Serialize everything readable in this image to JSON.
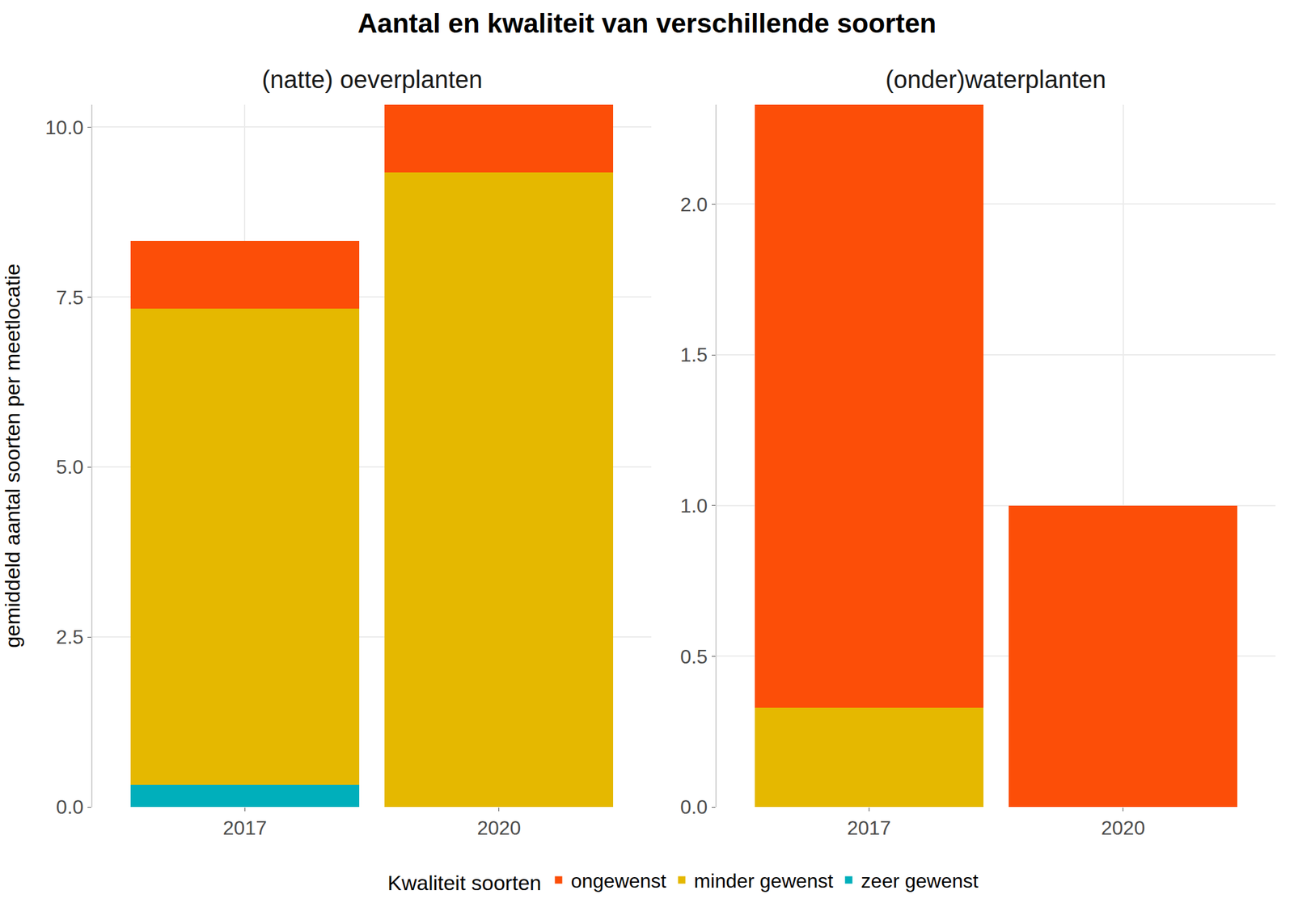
{
  "chart_data": {
    "type": "bar",
    "title": "Aantal en kwaliteit van verschillende soorten",
    "y_label": "gemiddeld aantal soorten per meetlocatie",
    "legend_title": "Kwaliteit soorten",
    "legend": "bottom",
    "stacked": true,
    "grid": true,
    "panels": [
      {
        "title": "(natte) oeverplanten",
        "categories": [
          "2017",
          "2020"
        ],
        "ylim": [
          0,
          10.33
        ],
        "yticks": [
          {
            "value": 0,
            "label": "0.0"
          },
          {
            "value": 2.5,
            "label": "2.5"
          },
          {
            "value": 5,
            "label": "5.0"
          },
          {
            "value": 7.5,
            "label": "7.5"
          },
          {
            "value": 10,
            "label": "10.0"
          }
        ],
        "series": [
          {
            "name": "zeer gewenst",
            "color": "#00AFBB",
            "values": [
              0.33,
              0
            ]
          },
          {
            "name": "minder gewenst",
            "color": "#E5B800",
            "values": [
              7.0,
              9.33
            ]
          },
          {
            "name": "ongewenst",
            "color": "#FC4E08",
            "values": [
              1.0,
              1.0
            ]
          }
        ]
      },
      {
        "title": "(onder)waterplanten",
        "categories": [
          "2017",
          "2020"
        ],
        "ylim": [
          0,
          2.33
        ],
        "yticks": [
          {
            "value": 0,
            "label": "0.0"
          },
          {
            "value": 0.5,
            "label": "0.5"
          },
          {
            "value": 1,
            "label": "1.0"
          },
          {
            "value": 1.5,
            "label": "1.5"
          },
          {
            "value": 2,
            "label": "2.0"
          }
        ],
        "series": [
          {
            "name": "minder gewenst",
            "color": "#E5B800",
            "values": [
              0.33,
              0
            ]
          },
          {
            "name": "ongewenst",
            "color": "#FC4E08",
            "values": [
              2.0,
              1.0
            ]
          }
        ]
      }
    ]
  }
}
